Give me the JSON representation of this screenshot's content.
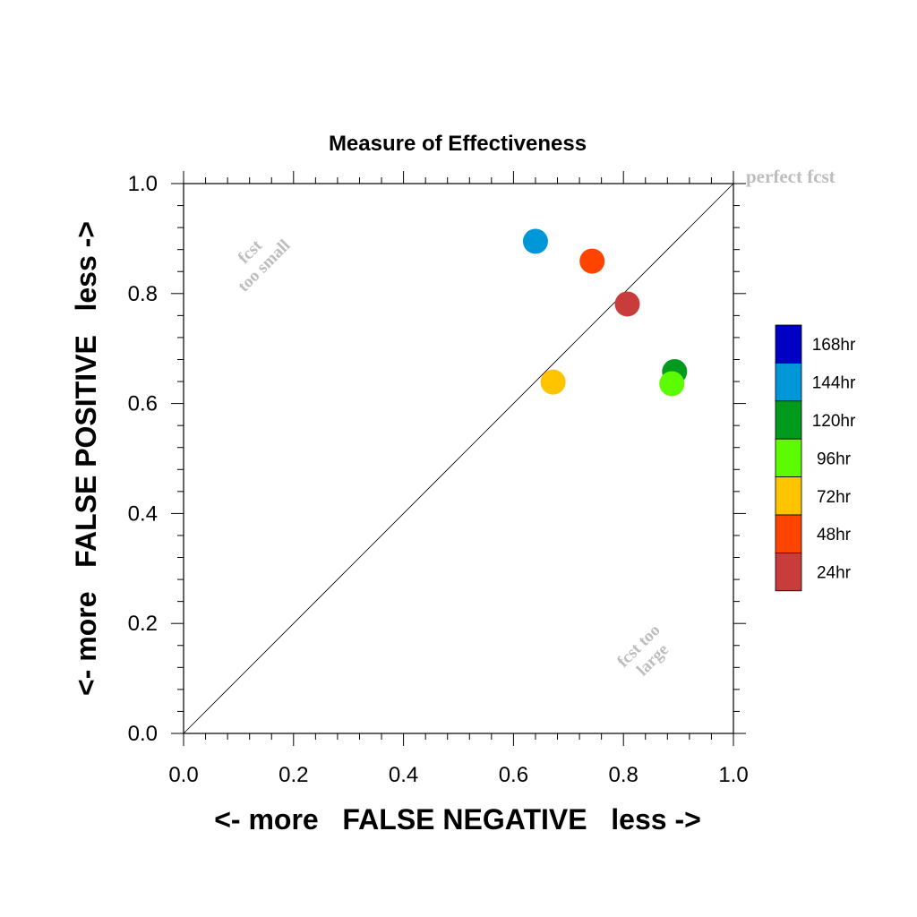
{
  "chart_data": {
    "type": "scatter",
    "title": "Measure of Effectiveness",
    "xlabel": "<- more   FALSE NEGATIVE   less ->",
    "ylabel": "<- more   FALSE POSITIVE   less ->",
    "xlim": [
      0,
      1
    ],
    "ylim": [
      0,
      1
    ],
    "xticks": [
      "0.0",
      "0.2",
      "0.4",
      "0.6",
      "0.8",
      "1.0"
    ],
    "yticks": [
      "0.0",
      "0.2",
      "0.4",
      "0.6",
      "0.8",
      "1.0"
    ],
    "grid": false,
    "diagonal_line": true,
    "annotations": {
      "perfect": "perfect fcst",
      "too_small_line1": "fcst",
      "too_small_line2": "too small",
      "too_large_line1": "fcst too",
      "too_large_line2": "large"
    },
    "legend_placement": "right",
    "series": [
      {
        "name": "168hr",
        "color": "#0000c4",
        "points": []
      },
      {
        "name": "144hr",
        "color": "#0097d9",
        "points": [
          {
            "x": 0.64,
            "y": 0.895
          }
        ]
      },
      {
        "name": "120hr",
        "color": "#009a1c",
        "points": [
          {
            "x": 0.893,
            "y": 0.658
          }
        ]
      },
      {
        "name": "96hr",
        "color": "#5cfb00",
        "points": [
          {
            "x": 0.888,
            "y": 0.636
          }
        ]
      },
      {
        "name": "72hr",
        "color": "#ffc400",
        "points": [
          {
            "x": 0.672,
            "y": 0.639
          }
        ]
      },
      {
        "name": "48hr",
        "color": "#ff4400",
        "points": [
          {
            "x": 0.743,
            "y": 0.859
          }
        ]
      },
      {
        "name": "24hr",
        "color": "#c83c3c",
        "points": [
          {
            "x": 0.807,
            "y": 0.781
          }
        ]
      }
    ]
  }
}
